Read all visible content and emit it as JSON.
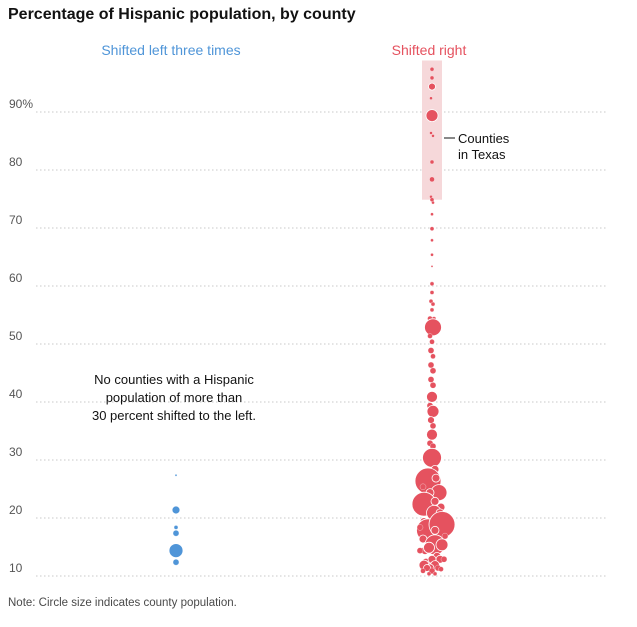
{
  "title": "Percentage of Hispanic population, by county",
  "note": "Note: Circle size indicates county population.",
  "colors": {
    "left": "#4f95d8",
    "right": "#e5525f",
    "band": "#f6d8da",
    "grid": "#c8c8c8"
  },
  "chart_data": {
    "type": "scatter",
    "title": "Percentage of Hispanic population, by county",
    "ylim": [
      8,
      98
    ],
    "y_ticks": [
      {
        "value": 10,
        "label": "10"
      },
      {
        "value": 20,
        "label": "20"
      },
      {
        "value": 30,
        "label": "30"
      },
      {
        "value": 40,
        "label": "40"
      },
      {
        "value": 50,
        "label": "50"
      },
      {
        "value": 60,
        "label": "60"
      },
      {
        "value": 70,
        "label": "70"
      },
      {
        "value": 80,
        "label": "80"
      },
      {
        "value": 90,
        "label": "90%"
      }
    ],
    "grid": true,
    "series": [
      {
        "name": "Shifted left three times",
        "color": "#4f95d8",
        "points": [
          {
            "x": 0,
            "y": 26,
            "r": 1
          },
          {
            "x": 0,
            "y": 20,
            "r": 4
          },
          {
            "x": 0,
            "y": 17,
            "r": 2
          },
          {
            "x": 0,
            "y": 16,
            "r": 3
          },
          {
            "x": 0,
            "y": 13,
            "r": 7
          },
          {
            "x": 0,
            "y": 11,
            "r": 3
          }
        ]
      },
      {
        "name": "Shifted right",
        "color": "#e5525f",
        "points": [
          {
            "x": 0,
            "y": 96,
            "r": 2
          },
          {
            "x": 0,
            "y": 94.5,
            "r": 2
          },
          {
            "x": 0,
            "y": 93,
            "r": 3.5
          },
          {
            "x": -1,
            "y": 91,
            "r": 1.5
          },
          {
            "x": 0,
            "y": 88,
            "r": 6
          },
          {
            "x": -1,
            "y": 85,
            "r": 1.5
          },
          {
            "x": 1,
            "y": 84.5,
            "r": 1.5
          },
          {
            "x": 0,
            "y": 80,
            "r": 2
          },
          {
            "x": 0,
            "y": 77,
            "r": 2.5
          },
          {
            "x": -1,
            "y": 74,
            "r": 1.5
          },
          {
            "x": 0,
            "y": 73.5,
            "r": 2
          },
          {
            "x": 1,
            "y": 73,
            "r": 1.5
          },
          {
            "x": 0,
            "y": 71,
            "r": 1.5
          },
          {
            "x": 0,
            "y": 68.5,
            "r": 2
          },
          {
            "x": 0,
            "y": 66.5,
            "r": 1.5
          },
          {
            "x": 0,
            "y": 64,
            "r": 1.5
          },
          {
            "x": 0,
            "y": 62,
            "r": 1
          },
          {
            "x": 0,
            "y": 59,
            "r": 2
          },
          {
            "x": 0,
            "y": 57.5,
            "r": 2
          },
          {
            "x": -1,
            "y": 56,
            "r": 2
          },
          {
            "x": 1,
            "y": 55.5,
            "r": 2
          },
          {
            "x": 0,
            "y": 54.5,
            "r": 2
          },
          {
            "x": -2,
            "y": 53,
            "r": 2.5
          },
          {
            "x": 2,
            "y": 53,
            "r": 2
          },
          {
            "x": -3,
            "y": 51.5,
            "r": 3
          },
          {
            "x": 1,
            "y": 51.5,
            "r": 8.5
          },
          {
            "x": -2,
            "y": 50,
            "r": 2.5
          },
          {
            "x": 0,
            "y": 49,
            "r": 2.5
          },
          {
            "x": -1,
            "y": 47.5,
            "r": 3
          },
          {
            "x": 1,
            "y": 46.5,
            "r": 2.5
          },
          {
            "x": -1,
            "y": 45,
            "r": 3
          },
          {
            "x": 1,
            "y": 44,
            "r": 3
          },
          {
            "x": -1,
            "y": 42.5,
            "r": 3
          },
          {
            "x": 1,
            "y": 41.5,
            "r": 3
          },
          {
            "x": 0,
            "y": 39.5,
            "r": 5.5
          },
          {
            "x": -2,
            "y": 38,
            "r": 3
          },
          {
            "x": 1,
            "y": 37,
            "r": 6
          },
          {
            "x": -1,
            "y": 35.5,
            "r": 3.5
          },
          {
            "x": 1,
            "y": 34.5,
            "r": 3
          },
          {
            "x": 0,
            "y": 33,
            "r": 5.5
          },
          {
            "x": -2,
            "y": 31.5,
            "r": 3
          },
          {
            "x": 1,
            "y": 31,
            "r": 3
          },
          {
            "x": 0,
            "y": 29,
            "r": 9.5
          },
          {
            "x": -2,
            "y": 26.5,
            "r": 3.5
          },
          {
            "x": 3,
            "y": 27,
            "r": 4
          },
          {
            "x": -4,
            "y": 25,
            "r": 13
          },
          {
            "x": 4,
            "y": 25.5,
            "r": 4
          },
          {
            "x": 7,
            "y": 23,
            "r": 8
          },
          {
            "x": -2,
            "y": 23,
            "r": 4
          },
          {
            "x": -8,
            "y": 21,
            "r": 12
          },
          {
            "x": 3,
            "y": 21.5,
            "r": 4
          },
          {
            "x": 9,
            "y": 20.5,
            "r": 4
          },
          {
            "x": -9,
            "y": 24,
            "r": 3
          },
          {
            "x": 2,
            "y": 19.5,
            "r": 7.5
          },
          {
            "x": -8,
            "y": 18,
            "r": 4
          },
          {
            "x": 8,
            "y": 19.5,
            "r": 4
          },
          {
            "x": -4,
            "y": 16.5,
            "r": 11.5
          },
          {
            "x": 10,
            "y": 17.5,
            "r": 13
          },
          {
            "x": 3,
            "y": 16.5,
            "r": 4
          },
          {
            "x": -9,
            "y": 15,
            "r": 4
          },
          {
            "x": 8,
            "y": 14.5,
            "r": 4
          },
          {
            "x": 3,
            "y": 14,
            "r": 10
          },
          {
            "x": -7,
            "y": 13,
            "r": 4
          },
          {
            "x": 10,
            "y": 14,
            "r": 6
          },
          {
            "x": -3,
            "y": 13.5,
            "r": 5.5
          },
          {
            "x": 5,
            "y": 12,
            "r": 4
          },
          {
            "x": -6,
            "y": 11,
            "r": 4
          },
          {
            "x": 0,
            "y": 11.5,
            "r": 4
          },
          {
            "x": 8,
            "y": 11.5,
            "r": 4
          },
          {
            "x": -8,
            "y": 10.5,
            "r": 5
          },
          {
            "x": 3,
            "y": 10.5,
            "r": 4.5
          },
          {
            "x": -2,
            "y": 10,
            "r": 4
          },
          {
            "x": 6,
            "y": 10,
            "r": 3
          },
          {
            "x": -5,
            "y": 10,
            "r": 3.5
          },
          {
            "x": 0,
            "y": 9.5,
            "r": 3
          },
          {
            "x": 9,
            "y": 9.8,
            "r": 2.5
          },
          {
            "x": -9,
            "y": 9.5,
            "r": 2.5
          },
          {
            "x": 3,
            "y": 9,
            "r": 2
          },
          {
            "x": -3,
            "y": 9,
            "r": 2
          },
          {
            "x": 12,
            "y": 11.5,
            "r": 3
          },
          {
            "x": -12,
            "y": 13,
            "r": 3
          },
          {
            "x": 13,
            "y": 15.5,
            "r": 3
          },
          {
            "x": -12,
            "y": 17,
            "r": 3
          }
        ]
      }
    ],
    "highlight_band": {
      "series": "Shifted right",
      "y_range": [
        73.5,
        97.5
      ],
      "label": "Counties in Texas"
    },
    "annotations": [
      {
        "series": "Shifted left three times",
        "text": [
          "No counties with a Hispanic",
          "population of more than",
          "30 percent shifted to the left."
        ]
      },
      {
        "series": "Shifted right",
        "text": [
          "Counties",
          "in Texas"
        ]
      }
    ]
  }
}
